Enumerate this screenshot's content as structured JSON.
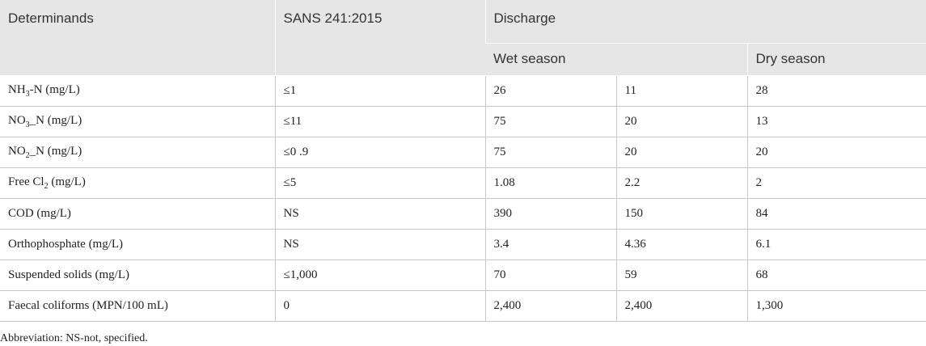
{
  "header": {
    "determinands": "Determinands",
    "sans": "SANS 241:2015",
    "discharge": "Discharge",
    "wet_season": "Wet season",
    "dry_season": "Dry season"
  },
  "rows": [
    {
      "name_pre": "NH",
      "name_sub": "3",
      "name_post": "-N (mg/L)",
      "sans": "≤1",
      "wet1": "26",
      "wet2": "11",
      "dry": "28"
    },
    {
      "name_pre": "NO",
      "name_sub": "3",
      "name_post": "_N (mg/L)",
      "sans": "≤11",
      "wet1": "75",
      "wet2": "20",
      "dry": "13"
    },
    {
      "name_pre": "NO",
      "name_sub": "2",
      "name_post": "_N (mg/L)",
      "sans": "≤0 .9",
      "wet1": "75",
      "wet2": "20",
      "dry": "20"
    },
    {
      "name_pre": "Free Cl",
      "name_sub": "2",
      "name_post": " (mg/L)",
      "sans": "≤5",
      "wet1": "1.08",
      "wet2": "2.2",
      "dry": "2"
    },
    {
      "name_pre": "COD (mg/L)",
      "name_sub": "",
      "name_post": "",
      "sans": "NS",
      "wet1": "390",
      "wet2": "150",
      "dry": "84"
    },
    {
      "name_pre": "Orthophosphate (mg/L)",
      "name_sub": "",
      "name_post": "",
      "sans": "NS",
      "wet1": "3.4",
      "wet2": "4.36",
      "dry": "6.1"
    },
    {
      "name_pre": "Suspended solids (mg/L)",
      "name_sub": "",
      "name_post": "",
      "sans": "≤1,000",
      "wet1": "70",
      "wet2": "59",
      "dry": "68"
    },
    {
      "name_pre": "Faecal coliforms (MPN/100 mL)",
      "name_sub": "",
      "name_post": "",
      "sans": "0",
      "wet1": "2,400",
      "wet2": "2,400",
      "dry": "1,300"
    }
  ],
  "footnote": "Abbreviation: NS-not, specified."
}
